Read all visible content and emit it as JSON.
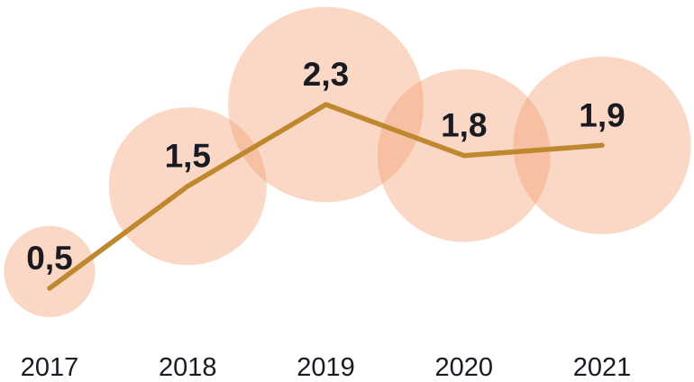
{
  "chart_data": {
    "type": "line",
    "variant": "line-with-proportional-bubbles",
    "title": "",
    "xlabel": "",
    "ylabel": "",
    "categories": [
      "2017",
      "2018",
      "2019",
      "2020",
      "2021"
    ],
    "series": [
      {
        "name": "value",
        "values": [
          0.5,
          1.5,
          2.3,
          1.8,
          1.9
        ]
      }
    ],
    "point_labels": [
      "0,5",
      "1,5",
      "2,3",
      "1,8",
      "1,9"
    ],
    "decimal_separator": ",",
    "ylim": [
      0,
      2.5
    ],
    "grid": false,
    "legend": false,
    "axis_lines": false,
    "bubble_area_proportional_to_value": true
  },
  "colors": {
    "background": "#FFFFFF",
    "bubble": "#F59E6E",
    "line": "#C0882E",
    "label_text": "#1A1A22"
  }
}
